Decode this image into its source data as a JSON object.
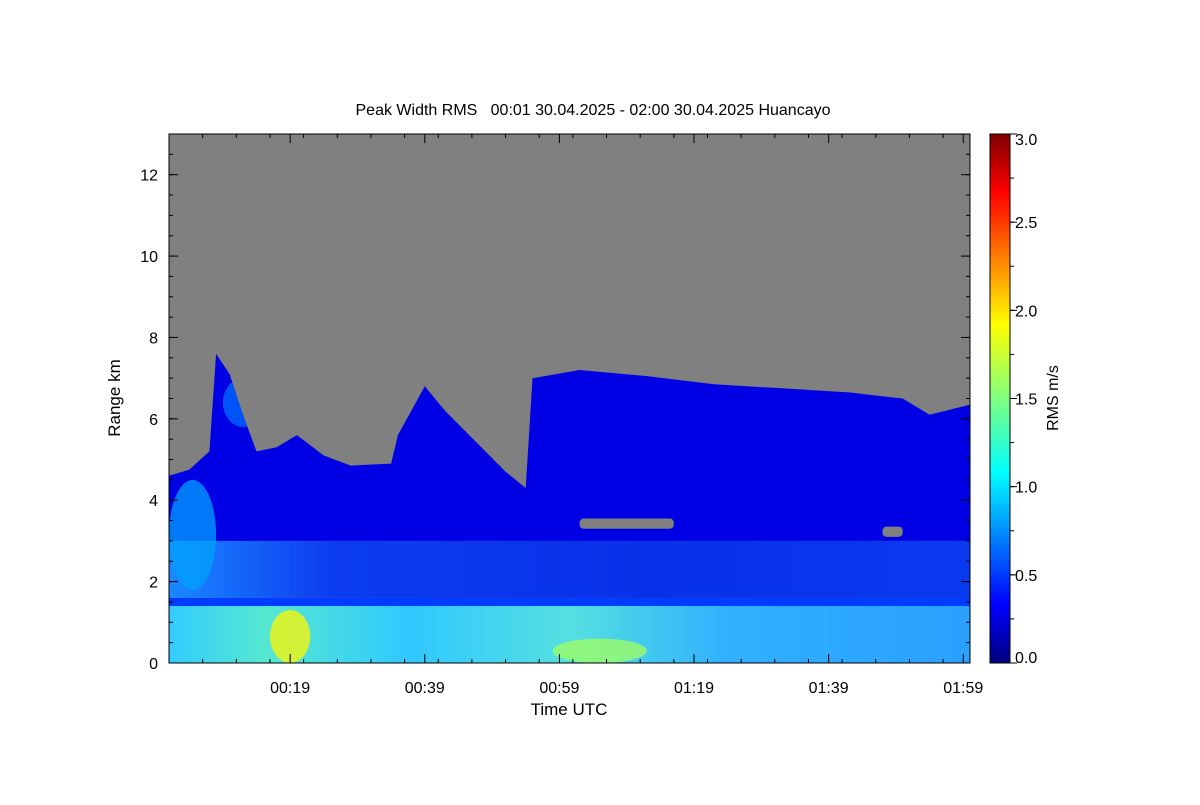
{
  "chart_data": {
    "type": "heatmap",
    "title": "Peak Width RMS   00:01 30.04.2025 - 02:00 30.04.2025 Huancayo",
    "xlabel": "Time UTC",
    "ylabel": "Range km",
    "colorbar_label": "RMS m/s",
    "x_range_minutes": [
      1,
      120
    ],
    "x_ticks": [
      {
        "label": "00:19",
        "minute": 19
      },
      {
        "label": "00:39",
        "minute": 39
      },
      {
        "label": "00:59",
        "minute": 59
      },
      {
        "label": "01:19",
        "minute": 79
      },
      {
        "label": "01:39",
        "minute": 99
      },
      {
        "label": "01:59",
        "minute": 119
      }
    ],
    "ylim": [
      0,
      13
    ],
    "y_ticks": [
      {
        "label": "0",
        "value": 0
      },
      {
        "label": "2",
        "value": 2
      },
      {
        "label": "4",
        "value": 4
      },
      {
        "label": "6",
        "value": 6
      },
      {
        "label": "8",
        "value": 8
      },
      {
        "label": "10",
        "value": 10
      },
      {
        "label": "12",
        "value": 12
      }
    ],
    "colorbar_range": [
      0.0,
      3.0
    ],
    "colorbar_ticks": [
      {
        "label": "0.0",
        "value": 0.0
      },
      {
        "label": "0.5",
        "value": 0.5
      },
      {
        "label": "1.0",
        "value": 1.0
      },
      {
        "label": "1.5",
        "value": 1.5
      },
      {
        "label": "2.0",
        "value": 2.0
      },
      {
        "label": "2.5",
        "value": 2.5
      },
      {
        "label": "3.0",
        "value": 3.0
      }
    ],
    "colormap": "jet",
    "no_data_color": "#808080",
    "echo_top_km": [
      {
        "minute": 1,
        "top": 4.6
      },
      {
        "minute": 4,
        "top": 4.75
      },
      {
        "minute": 7,
        "top": 5.2
      },
      {
        "minute": 8,
        "top": 7.6
      },
      {
        "minute": 10,
        "top": 7.1
      },
      {
        "minute": 12,
        "top": 6.1
      },
      {
        "minute": 14,
        "top": 5.2
      },
      {
        "minute": 17,
        "top": 5.3
      },
      {
        "minute": 20,
        "top": 5.6
      },
      {
        "minute": 24,
        "top": 5.1
      },
      {
        "minute": 28,
        "top": 4.85
      },
      {
        "minute": 34,
        "top": 4.9
      },
      {
        "minute": 35,
        "top": 5.6
      },
      {
        "minute": 39,
        "top": 6.8
      },
      {
        "minute": 42,
        "top": 6.2
      },
      {
        "minute": 45,
        "top": 5.7
      },
      {
        "minute": 48,
        "top": 5.2
      },
      {
        "minute": 51,
        "top": 4.7
      },
      {
        "minute": 54,
        "top": 4.3
      },
      {
        "minute": 55,
        "top": 7.0
      },
      {
        "minute": 62,
        "top": 7.2
      },
      {
        "minute": 72,
        "top": 7.05
      },
      {
        "minute": 82,
        "top": 6.85
      },
      {
        "minute": 92,
        "top": 6.75
      },
      {
        "minute": 102,
        "top": 6.65
      },
      {
        "minute": 110,
        "top": 6.5
      },
      {
        "minute": 114,
        "top": 6.1
      },
      {
        "minute": 120,
        "top": 6.35
      }
    ],
    "gaps_km": [
      {
        "minute_start": 62,
        "minute_end": 76,
        "bottom": 3.3,
        "top": 3.55
      },
      {
        "minute_start": 107,
        "minute_end": 110,
        "bottom": 3.1,
        "top": 3.35
      }
    ],
    "layers": [
      {
        "from_km": 0.0,
        "to_km": 1.4,
        "rms": 1.05
      },
      {
        "from_km": 1.4,
        "to_km": 1.6,
        "rms": 0.55
      },
      {
        "from_km": 1.6,
        "to_km": 3.0,
        "rms": 0.5
      },
      {
        "from_km": 3.0,
        "to_km": 7.6,
        "rms": 0.3
      }
    ],
    "hotspots": [
      {
        "minute_start": 16,
        "minute_end": 22,
        "from_km": 0.0,
        "to_km": 1.3,
        "rms": 1.9
      },
      {
        "minute_start": 58,
        "minute_end": 72,
        "from_km": 0.0,
        "to_km": 0.6,
        "rms": 1.6
      },
      {
        "minute_start": 1,
        "minute_end": 8,
        "from_km": 1.8,
        "to_km": 4.5,
        "rms": 0.85
      },
      {
        "minute_start": 9,
        "minute_end": 15,
        "from_km": 5.8,
        "to_km": 7.0,
        "rms": 0.7
      }
    ]
  }
}
